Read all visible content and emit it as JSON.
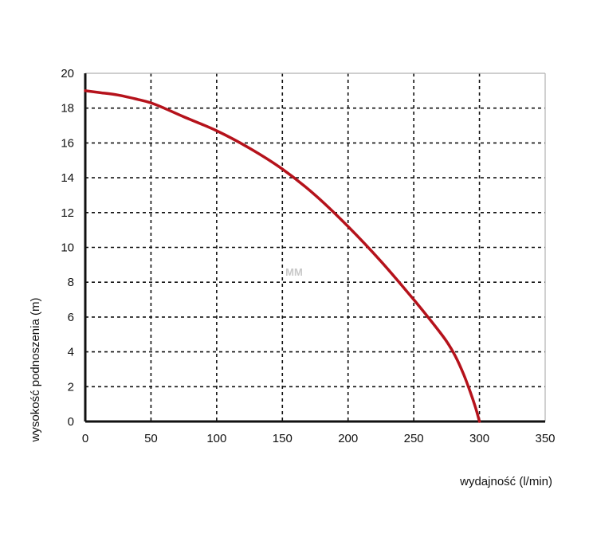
{
  "chart_data": {
    "type": "line",
    "title": "",
    "xlabel": "wydajność (l/min)",
    "ylabel": "wysokość podnoszenia (m)",
    "xlim": [
      0,
      350
    ],
    "ylim": [
      0,
      20
    ],
    "x_ticks": [
      "0",
      "50",
      "100",
      "150",
      "200",
      "250",
      "300",
      "350"
    ],
    "y_ticks": [
      "0",
      "2",
      "4",
      "6",
      "8",
      "10",
      "12",
      "14",
      "16",
      "18",
      "20"
    ],
    "grid": true,
    "grid_style": "dashed",
    "series": [
      {
        "color": "#b5121b",
        "x": [
          0,
          10,
          25,
          40,
          50,
          60,
          75,
          100,
          125,
          150,
          175,
          200,
          225,
          250,
          265,
          275,
          282,
          288,
          293,
          297,
          300
        ],
        "y": [
          19.0,
          18.9,
          18.75,
          18.5,
          18.3,
          18.0,
          17.5,
          16.7,
          15.7,
          14.5,
          13.0,
          11.2,
          9.2,
          7.0,
          5.6,
          4.6,
          3.7,
          2.7,
          1.7,
          0.8,
          0.0
        ]
      }
    ]
  },
  "watermark": "MM"
}
